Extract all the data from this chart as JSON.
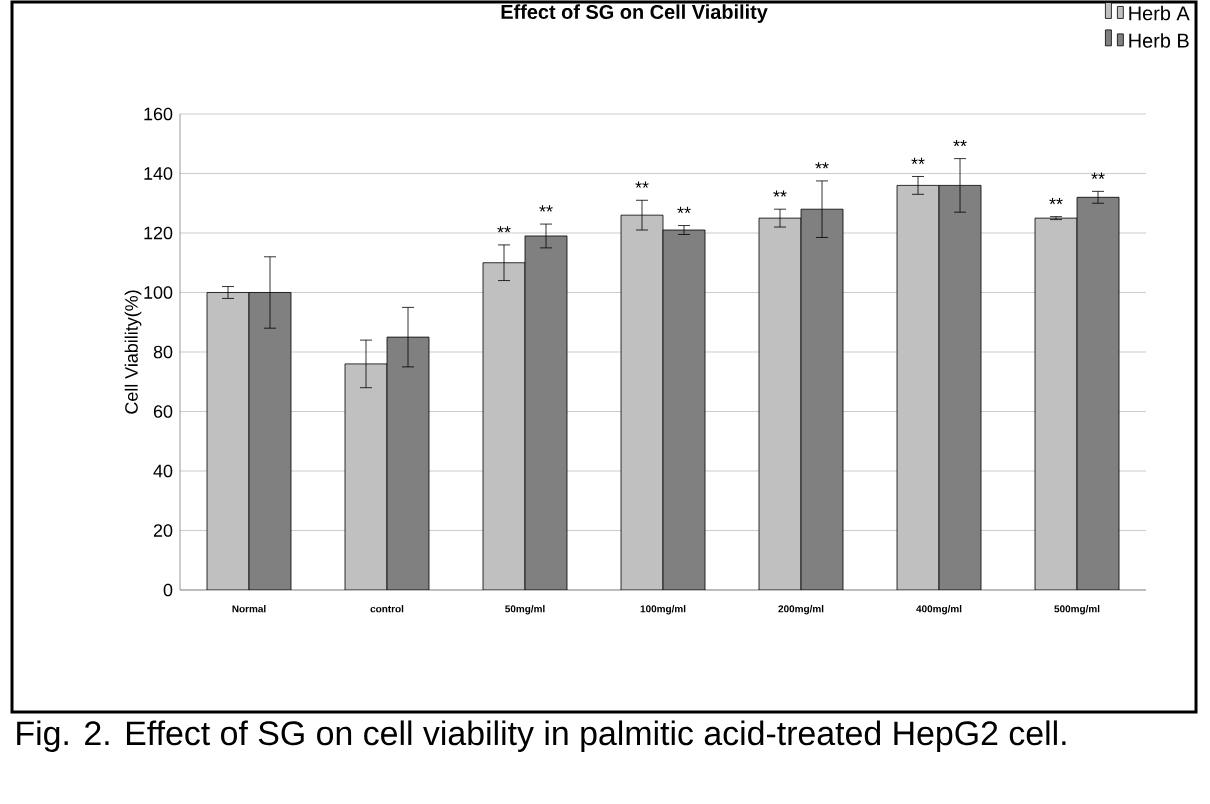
{
  "chart_data": {
    "type": "bar",
    "title": "Effect of SG on Cell Viability",
    "ylabel": "Cell Viability(%)",
    "categories": [
      "Normal",
      "control",
      "50mg/ml",
      "100mg/ml",
      "200mg/ml",
      "400mg/ml",
      "500mg/ml"
    ],
    "series": [
      {
        "name": "Herb A",
        "color": "#c0c0c0",
        "values": [
          100,
          76,
          110,
          126,
          125,
          136,
          125
        ],
        "errors": [
          2,
          8,
          6,
          5,
          3,
          3,
          0.5
        ],
        "value_labels": [
          null,
          null,
          "**",
          "**",
          "**",
          "**",
          "**"
        ]
      },
      {
        "name": "Herb B",
        "color": "#808080",
        "values": [
          100,
          85,
          119,
          121,
          128,
          136,
          132
        ],
        "errors": [
          12,
          10,
          4,
          1.5,
          9.5,
          9,
          2
        ],
        "value_labels": [
          null,
          null,
          "**",
          "**",
          "**",
          "**",
          "**"
        ]
      }
    ],
    "ylim": [
      0,
      160
    ],
    "yticks": [
      0,
      20,
      40,
      60,
      80,
      100,
      120,
      140,
      160
    ],
    "grid": "y",
    "legend": "top right",
    "annotations": [
      "Fig. 2. Effect of SG on cell viability in palmitic acid-treated HepG2 cell."
    ]
  }
}
